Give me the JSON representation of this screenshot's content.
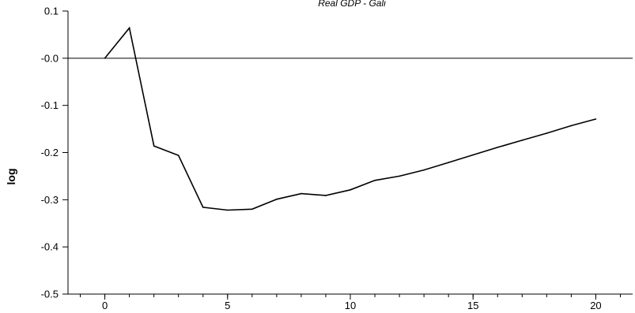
{
  "chart_data": {
    "type": "line",
    "title": "Real GDP - Gali",
    "xlabel": "",
    "ylabel": "log",
    "xlim": [
      -1.5,
      21.5
    ],
    "ylim": [
      -0.5,
      0.1
    ],
    "grid": false,
    "zero_line": true,
    "x_ticks": [
      0,
      5,
      10,
      15,
      20
    ],
    "x_tick_labels": [
      "0",
      "5",
      "10",
      "15",
      "20"
    ],
    "x_minor_ticks": [
      -1,
      0,
      1,
      2,
      3,
      4,
      5,
      6,
      7,
      8,
      9,
      10,
      11,
      12,
      13,
      14,
      15,
      16,
      17,
      18,
      19,
      20,
      21
    ],
    "y_ticks": [
      0.1,
      0.0,
      -0.1,
      -0.2,
      -0.3,
      -0.4,
      -0.5
    ],
    "y_tick_labels": [
      "0.1",
      "-0.0",
      "-0.1",
      "-0.2",
      "-0.3",
      "-0.4",
      "-0.5"
    ],
    "series": [
      {
        "color": "#000000",
        "x": [
          0,
          1,
          2,
          3,
          4,
          5,
          6,
          7,
          8,
          9,
          10,
          11,
          12,
          13,
          14,
          15,
          16,
          17,
          18,
          19,
          20
        ],
        "values": [
          0.0,
          0.064,
          -0.186,
          -0.206,
          -0.316,
          -0.322,
          -0.32,
          -0.299,
          -0.287,
          -0.291,
          -0.279,
          -0.259,
          -0.25,
          -0.237,
          -0.221,
          -0.205,
          -0.189,
          -0.174,
          -0.159,
          -0.143,
          -0.129
        ]
      }
    ]
  }
}
